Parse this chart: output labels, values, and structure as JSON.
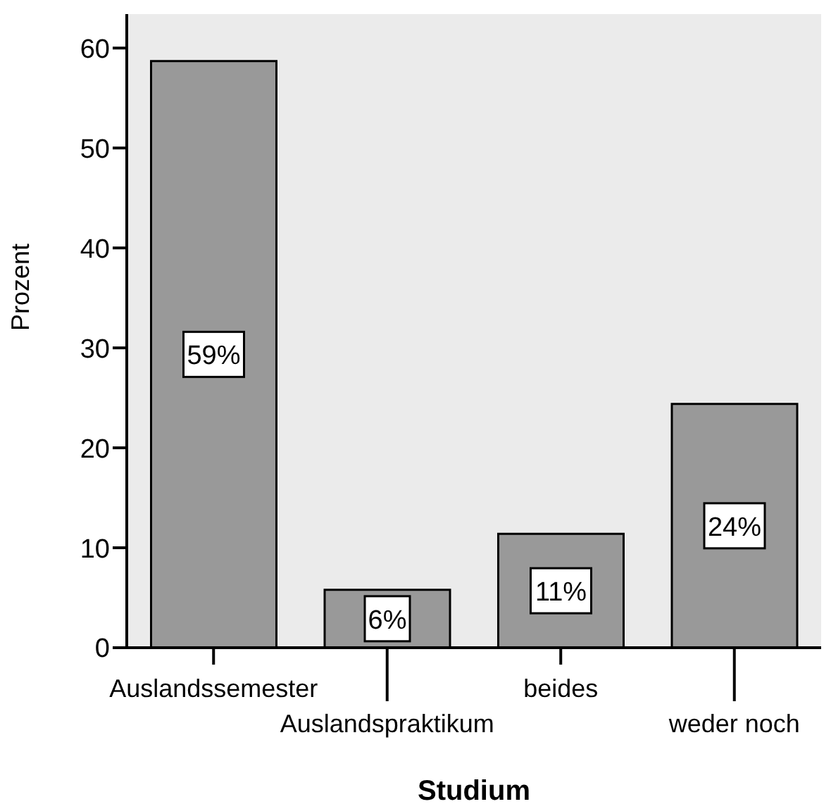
{
  "chart_data": {
    "type": "bar",
    "xlabel": "Studium",
    "ylabel": "Prozent",
    "categories": [
      "Auslandssemester",
      "Auslandspraktikum",
      "beides",
      "weder noch"
    ],
    "values": [
      58.7,
      5.8,
      11.4,
      24.4
    ],
    "value_labels": [
      "59%",
      "6%",
      "11%",
      "24%"
    ],
    "color": "#999999",
    "ylim": [
      0,
      63.4
    ],
    "yticks": [
      0,
      10,
      20,
      30,
      40,
      50,
      60
    ]
  }
}
